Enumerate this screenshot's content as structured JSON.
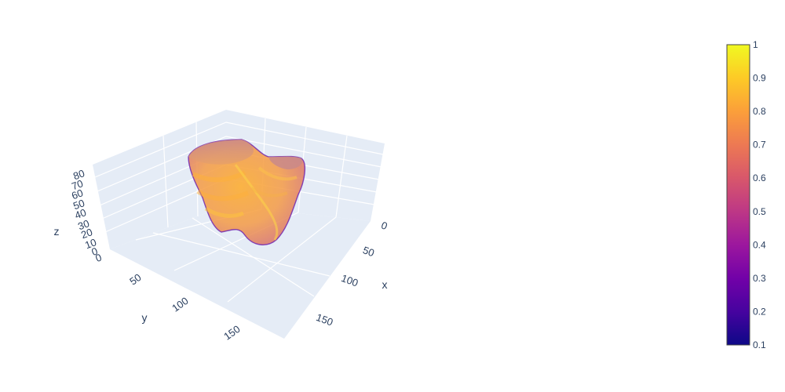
{
  "chart_data": {
    "type": "volume",
    "title": "",
    "axes": {
      "x": {
        "label": "x",
        "ticks": [
          "0",
          "50",
          "100",
          "150"
        ]
      },
      "y": {
        "label": "y",
        "ticks": [
          "50",
          "100",
          "150"
        ]
      },
      "z": {
        "label": "z",
        "ticks": [
          "0",
          "0",
          "10",
          "20",
          "30",
          "40",
          "50",
          "60",
          "70",
          "80"
        ]
      }
    },
    "colorbar": {
      "min": 0.1,
      "max": 1,
      "ticks": [
        "1",
        "0.9",
        "0.8",
        "0.7",
        "0.6",
        "0.5",
        "0.4",
        "0.3",
        "0.2",
        "0.1"
      ],
      "colorscale": [
        "#0d0887",
        "#46039f",
        "#7201a8",
        "#9c179e",
        "#bd3786",
        "#d8576b",
        "#ed7953",
        "#fb9f3a",
        "#fdca26",
        "#f0f921"
      ]
    },
    "grid": true,
    "background_color": "#e5ecf6",
    "gridline_color": "#ffffff"
  }
}
